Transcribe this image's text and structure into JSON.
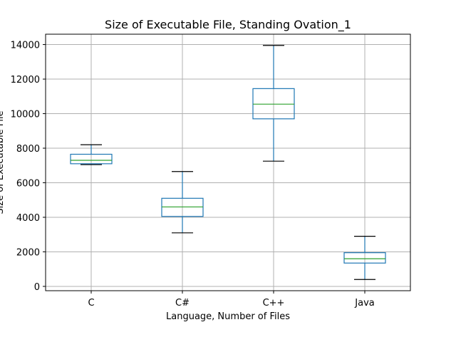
{
  "chart_data": {
    "type": "box",
    "title": "Size of Executable File, Standing Ovation_1",
    "xlabel": "Language, Number of Files",
    "ylabel": "Size of Executable File",
    "categories": [
      "C",
      "C#",
      "C++",
      "Java"
    ],
    "ylim": [
      -250,
      14600
    ],
    "yticks": [
      0,
      2000,
      4000,
      6000,
      8000,
      10000,
      12000,
      14000
    ],
    "grid": true,
    "boxes": [
      {
        "name": "C",
        "whisker_low": 7050,
        "q1": 7100,
        "median": 7300,
        "q3": 7650,
        "whisker_high": 8200
      },
      {
        "name": "C#",
        "whisker_low": 3100,
        "q1": 4050,
        "median": 4600,
        "q3": 5100,
        "whisker_high": 6650
      },
      {
        "name": "C++",
        "whisker_low": 7250,
        "q1": 9700,
        "median": 10550,
        "q3": 11450,
        "whisker_high": 13950
      },
      {
        "name": "Java",
        "whisker_low": 400,
        "q1": 1350,
        "median": 1600,
        "q3": 1950,
        "whisker_high": 2900
      }
    ],
    "colors": {
      "box": "#1f77b4",
      "median": "#2ca02c",
      "whisker_cap": "#000000",
      "grid": "#b0b0b0"
    }
  }
}
